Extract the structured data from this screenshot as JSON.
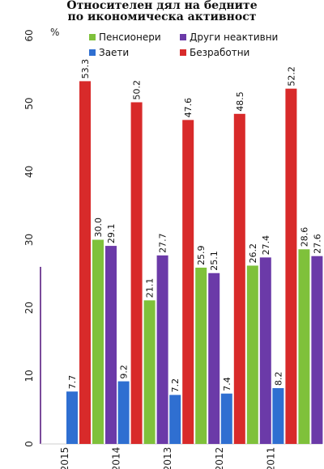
{
  "chart_data": {
    "type": "bar",
    "title": "Относителен дял на бедните",
    "subtitle": "по икономическа активност",
    "ylabel": "%",
    "xlabel": "",
    "ylim": [
      0,
      60
    ],
    "yticks": [
      "0",
      "10",
      "20",
      "30",
      "40",
      "50",
      "60"
    ],
    "categories": [
      "2015",
      "2014",
      "2013",
      "2012",
      "2011"
    ],
    "series": [
      {
        "name": "Заети",
        "color": "#2f6fd1",
        "values": [
          7.7,
          9.2,
          7.2,
          7.4,
          8.2
        ]
      },
      {
        "name": "Безработни",
        "color": "#d82a2a",
        "values": [
          53.3,
          50.2,
          47.6,
          48.5,
          52.2
        ]
      },
      {
        "name": "Пенсионери",
        "color": "#7fc13b",
        "values": [
          30.0,
          21.1,
          25.9,
          26.2,
          28.6
        ]
      },
      {
        "name": "Други неактивни",
        "color": "#6b3aa8",
        "values": [
          29.1,
          27.7,
          25.1,
          27.4,
          27.6
        ]
      }
    ],
    "value_labels": [
      [
        "7.7",
        "53.3",
        "30.0",
        "29.1"
      ],
      [
        "9.2",
        "50.2",
        "21.1",
        "27.7"
      ],
      [
        "7.2",
        "47.6",
        "25.9",
        "25.1"
      ],
      [
        "7.4",
        "48.5",
        "26.2",
        "27.4"
      ],
      [
        "8.2",
        "52.2",
        "28.6",
        "27.6"
      ]
    ],
    "legend": [
      {
        "name": "Пенсионери",
        "color": "#7fc13b"
      },
      {
        "name": "Други неактивни",
        "color": "#6b3aa8"
      },
      {
        "name": "Заети",
        "color": "#2f6fd1"
      },
      {
        "name": "Безработни",
        "color": "#d82a2a"
      }
    ],
    "legend_position": "top",
    "grid": false
  }
}
